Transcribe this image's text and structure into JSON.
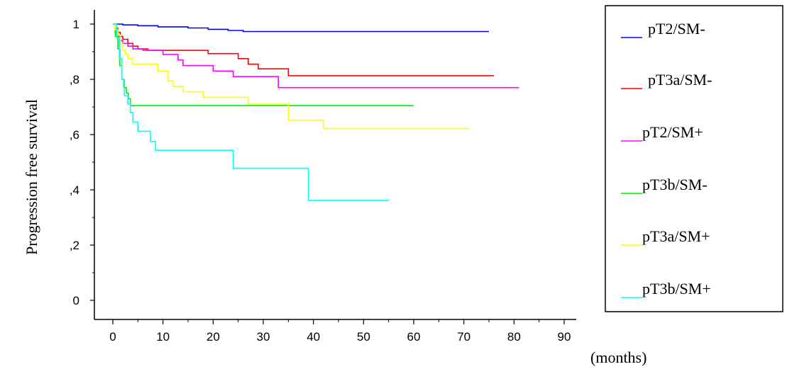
{
  "chart_data": {
    "type": "line",
    "step": true,
    "title": "",
    "xlabel": "(months)",
    "ylabel": "Progression free survival",
    "xlim": [
      0,
      90
    ],
    "ylim": [
      0,
      1
    ],
    "xticks": [
      0,
      10,
      20,
      30,
      40,
      50,
      60,
      70,
      80,
      90
    ],
    "xtick_labels": [
      "0",
      "10",
      "20",
      "30",
      "40",
      "50",
      "60",
      "70",
      "80",
      "90"
    ],
    "yticks": [
      0,
      0.2,
      0.4,
      0.6,
      0.8,
      1
    ],
    "ytick_labels": [
      "0",
      ",2",
      ",4",
      ",6",
      ",8",
      "1"
    ],
    "grid": false,
    "legend_position": "right",
    "series": [
      {
        "name": "pT2/SM-",
        "color": "#0000ff",
        "points": [
          [
            0,
            1
          ],
          [
            2,
            1
          ],
          [
            2,
            0.997
          ],
          [
            5,
            0.997
          ],
          [
            5,
            0.994
          ],
          [
            9,
            0.994
          ],
          [
            9,
            0.99
          ],
          [
            15,
            0.99
          ],
          [
            15,
            0.986
          ],
          [
            19,
            0.986
          ],
          [
            19,
            0.981
          ],
          [
            23,
            0.981
          ],
          [
            23,
            0.977
          ],
          [
            26,
            0.977
          ],
          [
            26,
            0.973
          ],
          [
            75,
            0.973
          ]
        ]
      },
      {
        "name": "pT3a/SM-",
        "color": "#ff0000",
        "points": [
          [
            0,
            1
          ],
          [
            0.5,
            1
          ],
          [
            0.5,
            0.985
          ],
          [
            1,
            0.985
          ],
          [
            1,
            0.97
          ],
          [
            1.5,
            0.97
          ],
          [
            1.5,
            0.955
          ],
          [
            2,
            0.955
          ],
          [
            2,
            0.945
          ],
          [
            3,
            0.945
          ],
          [
            3,
            0.93
          ],
          [
            4,
            0.93
          ],
          [
            4,
            0.92
          ],
          [
            5,
            0.92
          ],
          [
            5,
            0.91
          ],
          [
            7,
            0.91
          ],
          [
            7,
            0.905
          ],
          [
            19,
            0.905
          ],
          [
            19,
            0.893
          ],
          [
            25,
            0.893
          ],
          [
            25,
            0.875
          ],
          [
            27,
            0.875
          ],
          [
            27,
            0.855
          ],
          [
            29,
            0.855
          ],
          [
            29,
            0.838
          ],
          [
            35,
            0.838
          ],
          [
            35,
            0.813
          ],
          [
            76,
            0.813
          ]
        ]
      },
      {
        "name": "pT2/SM+",
        "color": "#ff00ff",
        "points": [
          [
            0,
            1
          ],
          [
            0.5,
            1
          ],
          [
            0.5,
            0.97
          ],
          [
            1,
            0.97
          ],
          [
            1,
            0.955
          ],
          [
            1.5,
            0.955
          ],
          [
            1.5,
            0.94
          ],
          [
            2,
            0.94
          ],
          [
            2,
            0.93
          ],
          [
            3,
            0.93
          ],
          [
            3,
            0.92
          ],
          [
            4,
            0.92
          ],
          [
            4,
            0.91
          ],
          [
            6,
            0.91
          ],
          [
            6,
            0.905
          ],
          [
            10,
            0.905
          ],
          [
            10,
            0.89
          ],
          [
            13,
            0.89
          ],
          [
            13,
            0.87
          ],
          [
            14,
            0.87
          ],
          [
            14,
            0.85
          ],
          [
            20,
            0.85
          ],
          [
            20,
            0.83
          ],
          [
            24,
            0.83
          ],
          [
            24,
            0.81
          ],
          [
            33,
            0.81
          ],
          [
            33,
            0.77
          ],
          [
            81,
            0.77
          ]
        ]
      },
      {
        "name": "pT3b/SM-",
        "color": "#00ee00",
        "points": [
          [
            0,
            1
          ],
          [
            0.5,
            1
          ],
          [
            0.5,
            0.955
          ],
          [
            1,
            0.955
          ],
          [
            1,
            0.91
          ],
          [
            1.4,
            0.91
          ],
          [
            1.4,
            0.85
          ],
          [
            1.8,
            0.85
          ],
          [
            1.8,
            0.8
          ],
          [
            2.2,
            0.8
          ],
          [
            2.2,
            0.77
          ],
          [
            2.7,
            0.77
          ],
          [
            2.7,
            0.75
          ],
          [
            3.1,
            0.75
          ],
          [
            3.1,
            0.73
          ],
          [
            3.5,
            0.73
          ],
          [
            3.5,
            0.705
          ],
          [
            60,
            0.705
          ]
        ]
      },
      {
        "name": "pT3a/SM+",
        "color": "#ffff00",
        "points": [
          [
            0,
            1
          ],
          [
            0.5,
            1
          ],
          [
            0.5,
            0.98
          ],
          [
            1,
            0.98
          ],
          [
            1,
            0.96
          ],
          [
            1.5,
            0.96
          ],
          [
            1.5,
            0.93
          ],
          [
            2,
            0.93
          ],
          [
            2,
            0.905
          ],
          [
            2.5,
            0.905
          ],
          [
            2.5,
            0.89
          ],
          [
            3,
            0.89
          ],
          [
            3,
            0.875
          ],
          [
            4,
            0.875
          ],
          [
            4,
            0.855
          ],
          [
            9,
            0.855
          ],
          [
            9,
            0.83
          ],
          [
            11,
            0.83
          ],
          [
            11,
            0.795
          ],
          [
            12,
            0.795
          ],
          [
            12,
            0.775
          ],
          [
            14,
            0.775
          ],
          [
            14,
            0.755
          ],
          [
            18,
            0.755
          ],
          [
            18,
            0.735
          ],
          [
            27,
            0.735
          ],
          [
            27,
            0.71
          ],
          [
            35,
            0.71
          ],
          [
            35,
            0.652
          ],
          [
            42,
            0.652
          ],
          [
            42,
            0.622
          ],
          [
            71,
            0.622
          ]
        ]
      },
      {
        "name": "pT3b/SM+",
        "color": "#00ffff",
        "points": [
          [
            0,
            1
          ],
          [
            0.8,
            1
          ],
          [
            0.8,
            0.95
          ],
          [
            1.3,
            0.95
          ],
          [
            1.3,
            0.875
          ],
          [
            1.8,
            0.875
          ],
          [
            1.8,
            0.8
          ],
          [
            2.3,
            0.8
          ],
          [
            2.3,
            0.74
          ],
          [
            3,
            0.74
          ],
          [
            3,
            0.71
          ],
          [
            3.5,
            0.71
          ],
          [
            3.5,
            0.68
          ],
          [
            4,
            0.68
          ],
          [
            4,
            0.645
          ],
          [
            5,
            0.645
          ],
          [
            5,
            0.612
          ],
          [
            7.5,
            0.612
          ],
          [
            7.5,
            0.575
          ],
          [
            8.5,
            0.575
          ],
          [
            8.5,
            0.543
          ],
          [
            24,
            0.543
          ],
          [
            24,
            0.478
          ],
          [
            39,
            0.478
          ],
          [
            39,
            0.362
          ],
          [
            55,
            0.362
          ]
        ]
      }
    ]
  }
}
